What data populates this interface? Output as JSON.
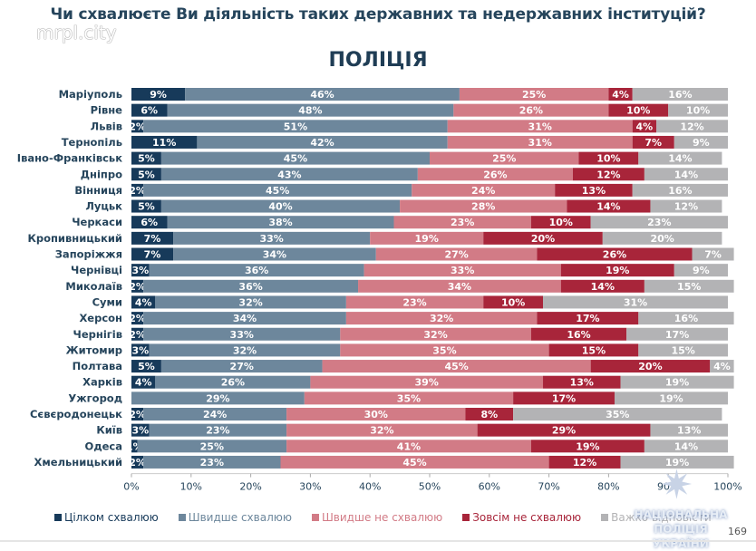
{
  "header": {
    "question": "Чи схвалюєте Ви діяльність таких державних та недержавних інституцій?",
    "watermark": "mrpl.city",
    "subtitle": "ПОЛІЦІЯ"
  },
  "footer": {
    "logo_line1": "НАЦІОНАЛЬНА ПОЛІЦІЯ",
    "logo_line2": "УКРАЇНИ",
    "page_number": "169"
  },
  "chart_data": {
    "type": "bar",
    "orientation": "horizontal",
    "stacked": "100%",
    "title": "ПОЛІЦІЯ",
    "xlabel": "",
    "ylabel": "",
    "xlim": [
      0,
      100
    ],
    "x_ticks": [
      "0%",
      "10%",
      "20%",
      "30%",
      "40%",
      "50%",
      "60%",
      "70%",
      "80%",
      "90%",
      "100%"
    ],
    "legend_position": "bottom",
    "categories": [
      "Маріуполь",
      "Рівне",
      "Львів",
      "Тернопіль",
      "Івано-Франківськ",
      "Дніпро",
      "Вінниця",
      "Луцьк",
      "Черкаси",
      "Кропивницький",
      "Запоріжжя",
      "Чернівці",
      "Миколаїв",
      "Суми",
      "Херсон",
      "Чернігів",
      "Житомир",
      "Полтава",
      "Харків",
      "Ужгород",
      "Сєвєродонецьк",
      "Київ",
      "Одеса",
      "Хмельницький"
    ],
    "series": [
      {
        "name": "Цілком схвалюю",
        "color": "#173a5a",
        "values": [
          9,
          6,
          2,
          11,
          5,
          5,
          2,
          5,
          6,
          7,
          7,
          3,
          2,
          4,
          2,
          2,
          3,
          5,
          4,
          0,
          2,
          3,
          1,
          2
        ]
      },
      {
        "name": "Швидше схвалюю",
        "color": "#6d879c",
        "values": [
          46,
          48,
          51,
          42,
          45,
          43,
          45,
          40,
          38,
          33,
          34,
          36,
          36,
          32,
          34,
          33,
          32,
          27,
          26,
          29,
          24,
          23,
          25,
          23
        ]
      },
      {
        "name": "Швидше не схвалюю",
        "color": "#d27b86",
        "values": [
          25,
          26,
          31,
          31,
          25,
          26,
          24,
          28,
          23,
          19,
          27,
          33,
          34,
          23,
          32,
          32,
          35,
          45,
          39,
          35,
          30,
          32,
          41,
          45
        ]
      },
      {
        "name": "Зовсім не схвалюю",
        "color": "#a8253a",
        "values": [
          4,
          10,
          4,
          7,
          10,
          12,
          13,
          14,
          10,
          20,
          26,
          19,
          14,
          10,
          17,
          16,
          15,
          20,
          13,
          17,
          8,
          29,
          19,
          12
        ]
      },
      {
        "name": "Важко відповісти",
        "color": "#b3b3b5",
        "values": [
          16,
          10,
          12,
          9,
          14,
          14,
          16,
          12,
          23,
          20,
          7,
          9,
          15,
          31,
          16,
          17,
          15,
          4,
          19,
          19,
          35,
          13,
          14,
          19
        ]
      }
    ]
  }
}
